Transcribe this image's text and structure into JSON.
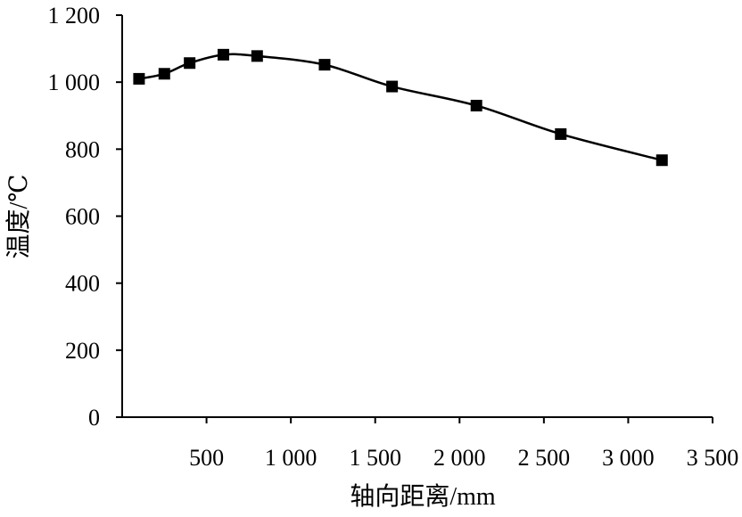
{
  "chart_data": {
    "type": "line",
    "title": "",
    "xlabel": "轴向距离/mm",
    "ylabel": "温度/℃",
    "xlim": [
      0,
      3500
    ],
    "ylim": [
      0,
      1200
    ],
    "x_ticks": [
      500,
      1000,
      1500,
      2000,
      2500,
      3000,
      3500
    ],
    "x_tick_labels": [
      "500",
      "1 000",
      "1 500",
      "2 000",
      "2 500",
      "3 000",
      "3 500"
    ],
    "y_ticks": [
      0,
      200,
      400,
      600,
      800,
      1000,
      1200
    ],
    "y_tick_labels": [
      "0",
      "200",
      "400",
      "600",
      "800",
      "1 000",
      "1 200"
    ],
    "grid": false,
    "legend": "none",
    "series": [
      {
        "marker": "square",
        "color": "#000000",
        "x": [
          100,
          250,
          400,
          600,
          800,
          1200,
          1600,
          2100,
          2600,
          3200
        ],
        "y": [
          1010,
          1025,
          1057,
          1082,
          1078,
          1052,
          987,
          930,
          845,
          767
        ]
      }
    ]
  }
}
